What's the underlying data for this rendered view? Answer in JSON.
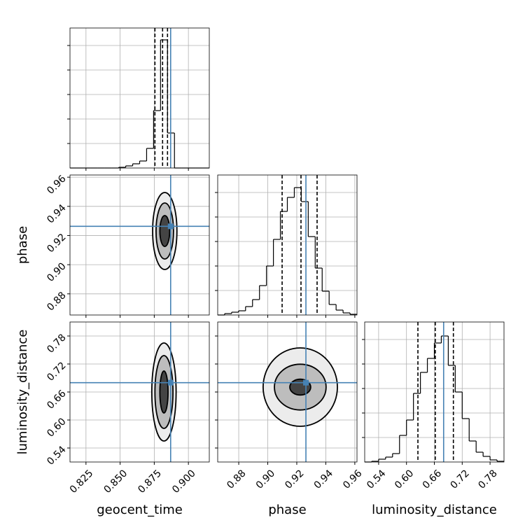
{
  "chart_data": {
    "type": "corner",
    "truth_color": "#4682b4",
    "hist_ylim": [
      0,
      200
    ],
    "hist_yticks": [
      35,
      70,
      105,
      140,
      175
    ],
    "grid": true,
    "parameters": [
      {
        "name": "geocent_time",
        "lim": [
          0.8133,
          0.9153
        ],
        "ticks": [
          0.825,
          {
            "value": 0.85,
            "label": "0.850"
          },
          0.875,
          {
            "value": 0.9,
            "label": "0.900"
          }
        ],
        "truth": 0.887,
        "quantiles": [
          0.8755,
          0.8811,
          0.8847
        ],
        "bins": [
          0.8133,
          0.8184,
          0.8235,
          0.8286,
          0.8337,
          0.8388,
          0.8439,
          0.849,
          0.8541,
          0.8592,
          0.8643,
          0.8694,
          0.8745,
          0.8796,
          0.8847,
          0.8898,
          0.8949,
          0.9,
          0.9051,
          0.9102,
          0.9153
        ],
        "counts": [
          0,
          0,
          0,
          0,
          0,
          0,
          0,
          1,
          3,
          6,
          10,
          28,
          82,
          183,
          50,
          0,
          0,
          0,
          0,
          0
        ]
      },
      {
        "name": "phase",
        "lim": [
          0.8655,
          0.9615
        ],
        "ticks": [
          0.88,
          {
            "value": 0.9,
            "label": "0.90"
          },
          0.92,
          0.94,
          0.96
        ],
        "truth": 0.9263,
        "quantiles": [
          0.9099,
          0.9229,
          0.934
        ],
        "bins": [
          0.8655,
          0.8703,
          0.8751,
          0.8799,
          0.8847,
          0.8895,
          0.8943,
          0.8991,
          0.9039,
          0.9087,
          0.9135,
          0.9183,
          0.9231,
          0.9279,
          0.9327,
          0.9375,
          0.9423,
          0.9471,
          0.9519,
          0.9567,
          0.9615
        ],
        "counts": [
          0,
          2,
          4,
          6,
          12,
          22,
          42,
          70,
          108,
          148,
          168,
          182,
          162,
          112,
          67,
          34,
          15,
          7,
          3,
          1
        ]
      },
      {
        "name": "luminosity_distance",
        "lim": [
          0.51,
          0.81
        ],
        "ticks": [
          0.54,
          {
            "value": 0.6,
            "label": "0.60"
          },
          0.66,
          0.72,
          0.78
        ],
        "truth": 0.68,
        "quantiles": [
          0.6246,
          0.662,
          0.701
        ],
        "bins": [
          0.51,
          0.525,
          0.54,
          0.555,
          0.57,
          0.585,
          0.6,
          0.615,
          0.63,
          0.645,
          0.66,
          0.675,
          0.69,
          0.705,
          0.72,
          0.735,
          0.75,
          0.765,
          0.78,
          0.795,
          0.81
        ],
        "counts": [
          0,
          1,
          4,
          7,
          12,
          38,
          60,
          98,
          128,
          148,
          170,
          180,
          138,
          100,
          62,
          30,
          14,
          8,
          3,
          1
        ]
      }
    ],
    "joint": [
      {
        "center": [
          0.8827,
          0.9231
        ],
        "contours": [
          [
            0.0089,
            0.0264
          ],
          [
            0.0064,
            0.0192
          ],
          [
            0.0036,
            0.0106
          ]
        ]
      },
      {
        "center": [
          0.8821,
          0.66
        ],
        "contours": [
          [
            0.0089,
            0.105
          ],
          [
            0.0066,
            0.078
          ],
          [
            0.003,
            0.045
          ]
        ]
      },
      {
        "center": [
          0.9224,
          0.6705
        ],
        "contours": [
          [
            0.0256,
            0.084
          ],
          [
            0.0178,
            0.049
          ],
          [
            0.0072,
            0.017
          ]
        ]
      }
    ]
  }
}
